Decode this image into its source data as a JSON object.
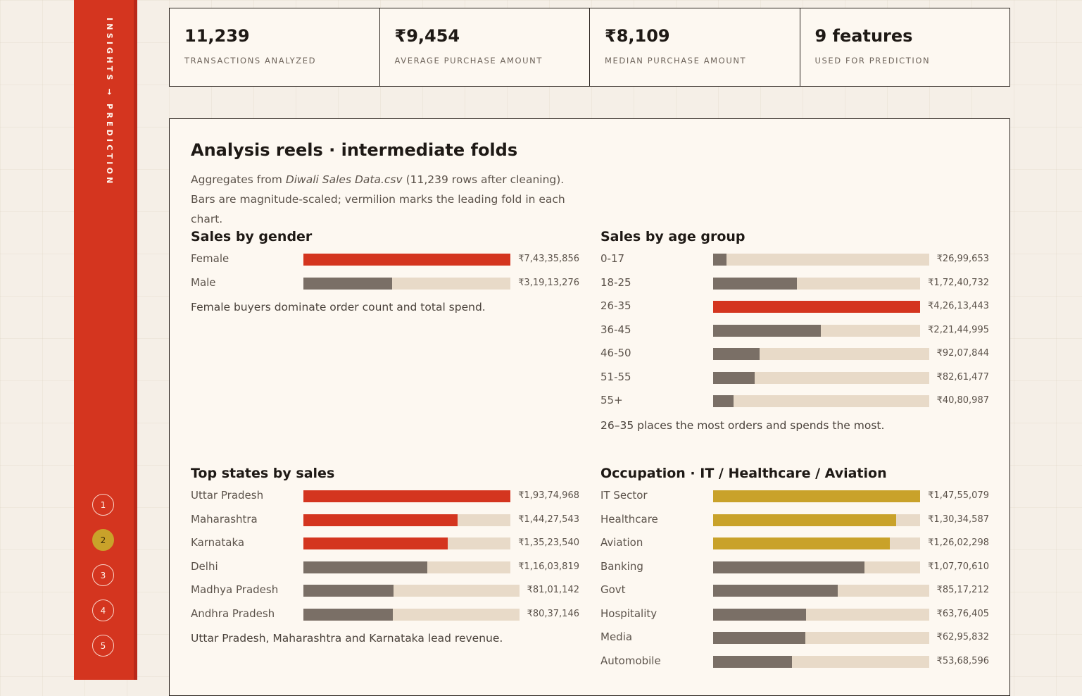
{
  "rail": {
    "label": "INSIGHTS → PREDICTION",
    "steps": [
      "1",
      "2",
      "3",
      "4",
      "5"
    ],
    "active_step": "2"
  },
  "stats": [
    {
      "value": "11,239",
      "label": "TRANSACTIONS ANALYZED"
    },
    {
      "value": "₹9,454",
      "label": "AVERAGE PURCHASE AMOUNT"
    },
    {
      "value": "₹8,109",
      "label": "MEDIAN PURCHASE AMOUNT"
    },
    {
      "value": "9 features",
      "label": "USED FOR PREDICTION"
    }
  ],
  "panel": {
    "title": "Analysis reels · intermediate folds",
    "desc_before": "Aggregates from ",
    "desc_file": "Diwali Sales Data.csv",
    "desc_after": " (11,239 rows after cleaning). Bars are magnitude-scaled; vermilion marks the leading fold in each chart."
  },
  "colors": {
    "vermilion": "#d4351f",
    "gold": "#c9a22a",
    "neutral_bar": "#7a6f66",
    "track": "#e8dac8"
  },
  "chart_data": [
    {
      "type": "bar",
      "title": "Sales by gender",
      "categories": [
        "Female",
        "Male"
      ],
      "values": [
        74335856,
        31913276
      ],
      "labels": [
        "₹7,43,35,856",
        "₹3,19,13,276"
      ],
      "highlight": [
        "red",
        "none"
      ],
      "note": "Female buyers dominate order count and total spend."
    },
    {
      "type": "bar",
      "title": "Sales by age group",
      "categories": [
        "0-17",
        "18-25",
        "26-35",
        "36-45",
        "46-50",
        "51-55",
        "55+"
      ],
      "values": [
        2699653,
        17240732,
        42613443,
        22144995,
        9207844,
        8261477,
        4080987
      ],
      "labels": [
        "₹26,99,653",
        "₹1,72,40,732",
        "₹4,26,13,443",
        "₹2,21,44,995",
        "₹92,07,844",
        "₹82,61,477",
        "₹40,80,987"
      ],
      "highlight": [
        "none",
        "none",
        "red",
        "none",
        "none",
        "none",
        "none"
      ],
      "note": "26–35 places the most orders and spends the most."
    },
    {
      "type": "bar",
      "title": "Top states by sales",
      "categories": [
        "Uttar Pradesh",
        "Maharashtra",
        "Karnataka",
        "Delhi",
        "Madhya Pradesh",
        "Andhra Pradesh"
      ],
      "values": [
        19374968,
        14427543,
        13523540,
        11603819,
        8101142,
        8037146
      ],
      "labels": [
        "₹1,93,74,968",
        "₹1,44,27,543",
        "₹1,35,23,540",
        "₹1,16,03,819",
        "₹81,01,142",
        "₹80,37,146"
      ],
      "highlight": [
        "red",
        "red",
        "red",
        "none",
        "none",
        "none"
      ],
      "note": "Uttar Pradesh, Maharashtra and Karnataka lead revenue."
    },
    {
      "type": "bar",
      "title": "Occupation · IT / Healthcare / Aviation",
      "categories": [
        "IT Sector",
        "Healthcare",
        "Aviation",
        "Banking",
        "Govt",
        "Hospitality",
        "Media",
        "Automobile"
      ],
      "values": [
        14755079,
        13034587,
        12602298,
        10770610,
        8517212,
        6376405,
        6295832,
        5368596
      ],
      "labels": [
        "₹1,47,55,079",
        "₹1,30,34,587",
        "₹1,26,02,298",
        "₹1,07,70,610",
        "₹85,17,212",
        "₹63,76,405",
        "₹62,95,832",
        "₹53,68,596"
      ],
      "highlight": [
        "gold",
        "gold",
        "gold",
        "none",
        "none",
        "none",
        "none",
        "none"
      ],
      "note": ""
    }
  ]
}
